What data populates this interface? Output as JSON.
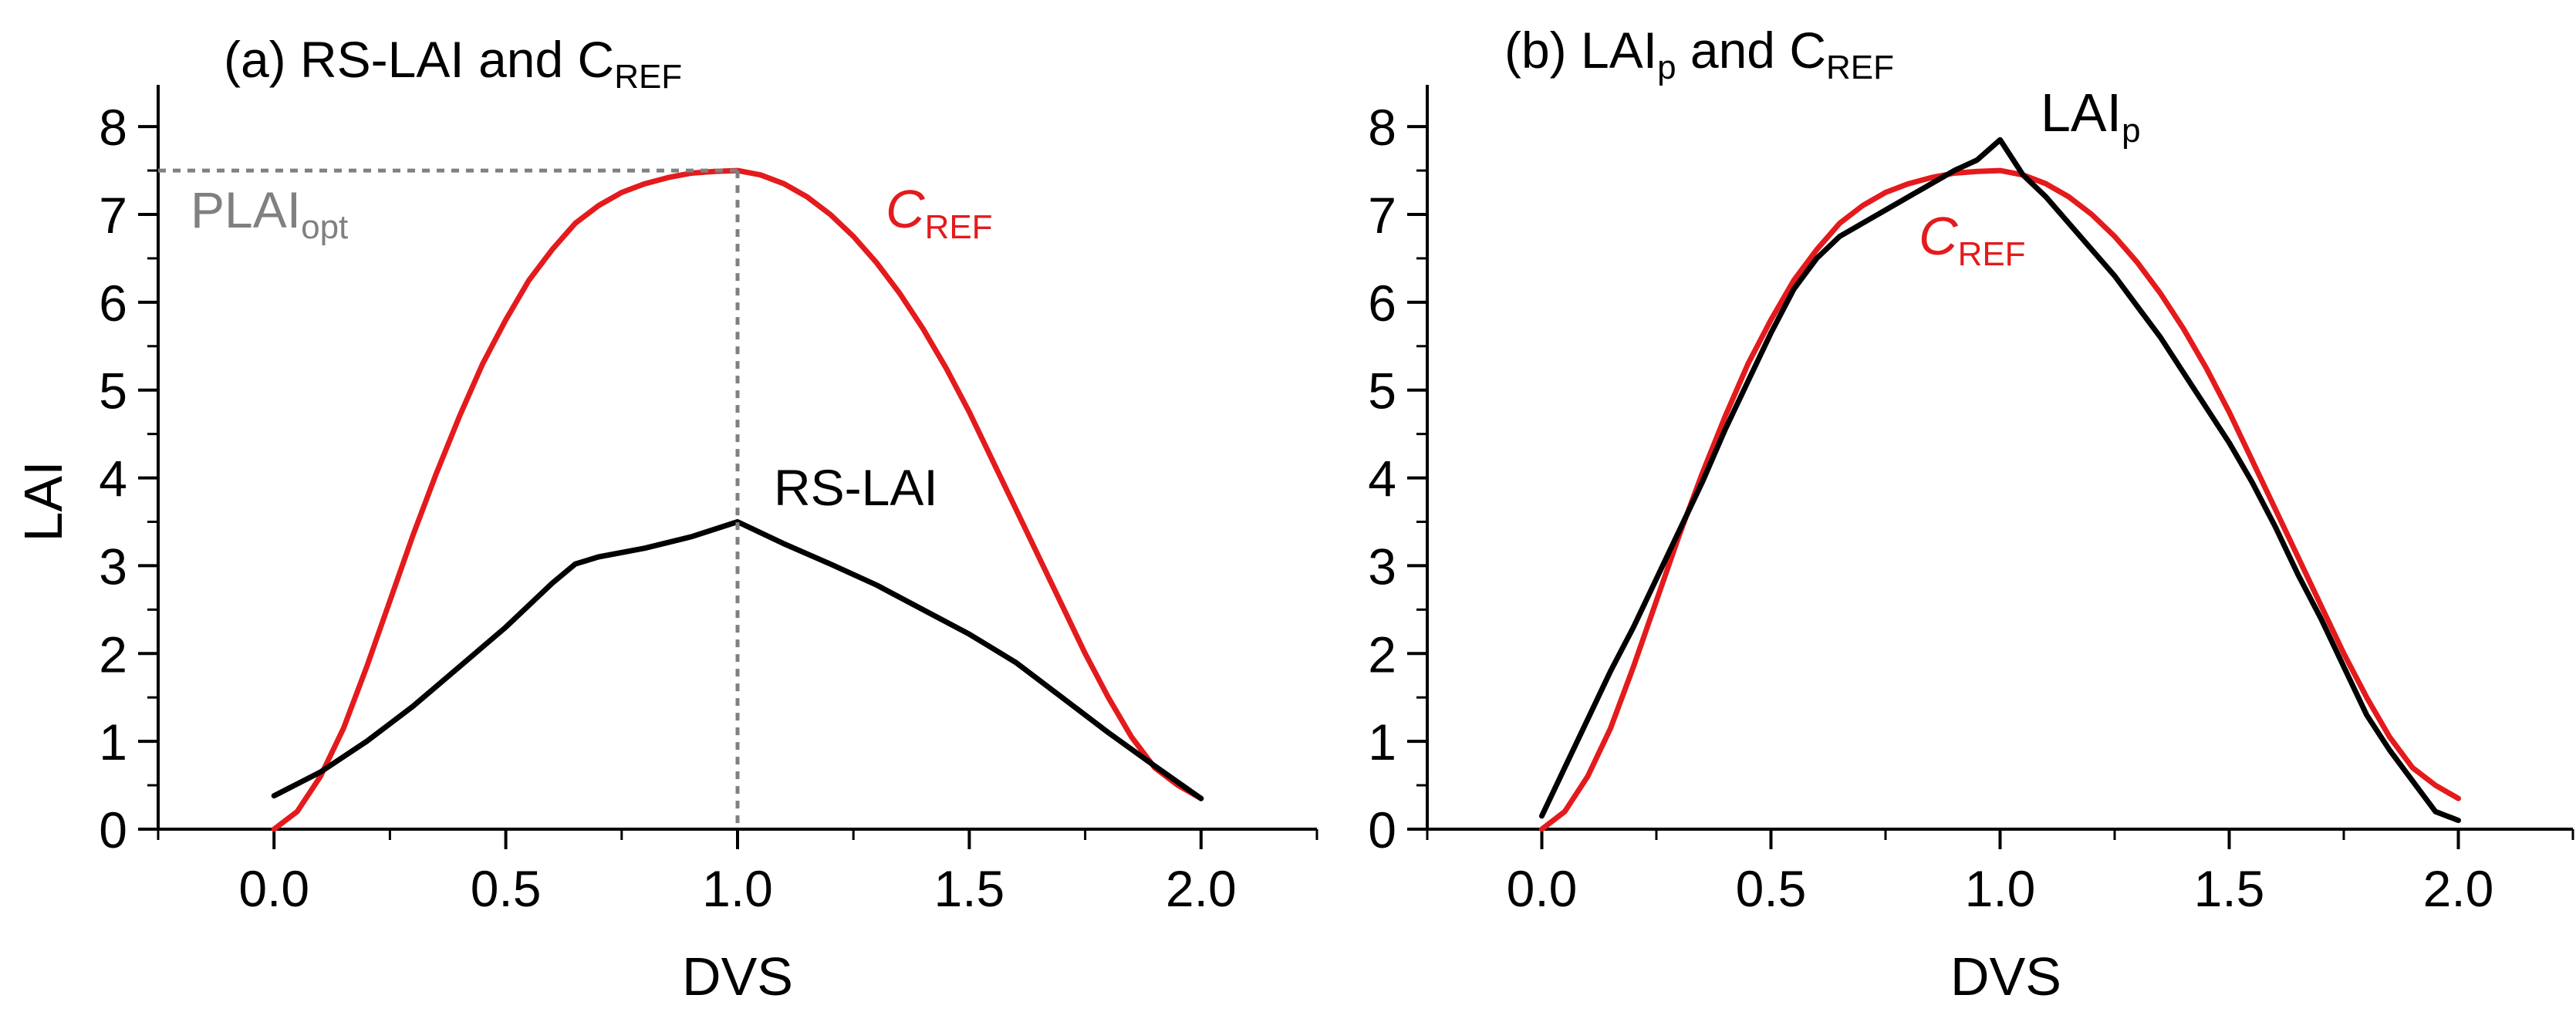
{
  "colors": {
    "red": "#e41a1c",
    "black": "#000000",
    "gray": "#808080"
  },
  "chart_data": [
    {
      "panel": "a",
      "type": "line",
      "title": {
        "main": "(a) RS-LAI and C",
        "sub": "REF"
      },
      "xlabel": "DVS",
      "ylabel": "LAI",
      "xlim": [
        -0.25,
        2.25
      ],
      "ylim": [
        0,
        8.3
      ],
      "xticks": [
        "0.0",
        "0.5",
        "1.0",
        "1.5",
        "2.0"
      ],
      "yticks": [
        "0",
        "1",
        "2",
        "3",
        "4",
        "5",
        "6",
        "7",
        "8"
      ],
      "series": [
        {
          "name": "C_REF",
          "color": "red",
          "x": [
            0.0,
            0.05,
            0.1,
            0.15,
            0.2,
            0.25,
            0.3,
            0.35,
            0.4,
            0.45,
            0.5,
            0.55,
            0.6,
            0.65,
            0.7,
            0.75,
            0.8,
            0.85,
            0.9,
            0.95,
            1.0,
            1.05,
            1.1,
            1.15,
            1.2,
            1.25,
            1.3,
            1.35,
            1.4,
            1.45,
            1.5,
            1.55,
            1.6,
            1.65,
            1.7,
            1.75,
            1.8,
            1.85,
            1.9,
            1.95,
            2.0
          ],
          "y": [
            0.0,
            0.2,
            0.6,
            1.15,
            1.85,
            2.6,
            3.35,
            4.05,
            4.7,
            5.3,
            5.8,
            6.25,
            6.6,
            6.9,
            7.1,
            7.25,
            7.35,
            7.42,
            7.47,
            7.49,
            7.5,
            7.45,
            7.35,
            7.2,
            7.0,
            6.75,
            6.45,
            6.1,
            5.7,
            5.25,
            4.75,
            4.2,
            3.65,
            3.1,
            2.55,
            2.0,
            1.5,
            1.05,
            0.7,
            0.5,
            0.35
          ]
        },
        {
          "name": "RS-LAI",
          "color": "black",
          "x": [
            0.0,
            0.1,
            0.2,
            0.3,
            0.4,
            0.5,
            0.6,
            0.65,
            0.7,
            0.8,
            0.9,
            1.0,
            1.1,
            1.2,
            1.3,
            1.4,
            1.5,
            1.6,
            1.7,
            1.8,
            1.9,
            2.0
          ],
          "y": [
            0.38,
            0.65,
            1.0,
            1.4,
            1.85,
            2.3,
            2.8,
            3.02,
            3.1,
            3.2,
            3.33,
            3.5,
            3.25,
            3.02,
            2.78,
            2.5,
            2.22,
            1.9,
            1.5,
            1.1,
            0.72,
            0.35
          ]
        }
      ],
      "annotations": {
        "rs_label": "RS-LAI",
        "cref_main": "C",
        "cref_sub": "REF",
        "plai_main": "PLAI",
        "plai_sub": "opt",
        "plai_value": 7.5,
        "plai_dvs": 1.0
      }
    },
    {
      "panel": "b",
      "type": "line",
      "title": {
        "p1": "(b) LAI",
        "p1sub": "p",
        "p2": " and C",
        "p2sub": "REF"
      },
      "xlabel": "DVS",
      "ylabel": "",
      "xlim": [
        -0.25,
        2.25
      ],
      "ylim": [
        0,
        8.3
      ],
      "xticks": [
        "0.0",
        "0.5",
        "1.0",
        "1.5",
        "2.0"
      ],
      "yticks": [
        "0",
        "1",
        "2",
        "3",
        "4",
        "5",
        "6",
        "7",
        "8"
      ],
      "series": [
        {
          "name": "C_REF",
          "color": "red",
          "x": [
            0.0,
            0.05,
            0.1,
            0.15,
            0.2,
            0.25,
            0.3,
            0.35,
            0.4,
            0.45,
            0.5,
            0.55,
            0.6,
            0.65,
            0.7,
            0.75,
            0.8,
            0.85,
            0.9,
            0.95,
            1.0,
            1.05,
            1.1,
            1.15,
            1.2,
            1.25,
            1.3,
            1.35,
            1.4,
            1.45,
            1.5,
            1.55,
            1.6,
            1.65,
            1.7,
            1.75,
            1.8,
            1.85,
            1.9,
            1.95,
            2.0
          ],
          "y": [
            0.0,
            0.2,
            0.6,
            1.15,
            1.85,
            2.6,
            3.35,
            4.05,
            4.7,
            5.3,
            5.8,
            6.25,
            6.6,
            6.9,
            7.1,
            7.25,
            7.35,
            7.42,
            7.47,
            7.49,
            7.5,
            7.45,
            7.35,
            7.2,
            7.0,
            6.75,
            6.45,
            6.1,
            5.7,
            5.25,
            4.75,
            4.2,
            3.65,
            3.1,
            2.55,
            2.0,
            1.5,
            1.05,
            0.7,
            0.5,
            0.35
          ]
        },
        {
          "name": "LAI_p",
          "color": "black",
          "x": [
            0.0,
            0.05,
            0.1,
            0.15,
            0.2,
            0.25,
            0.3,
            0.35,
            0.4,
            0.45,
            0.5,
            0.55,
            0.6,
            0.65,
            0.7,
            0.75,
            0.8,
            0.85,
            0.9,
            0.95,
            1.0,
            1.05,
            1.1,
            1.15,
            1.2,
            1.25,
            1.3,
            1.35,
            1.4,
            1.45,
            1.5,
            1.55,
            1.6,
            1.65,
            1.7,
            1.75,
            1.8,
            1.85,
            1.9,
            1.95,
            2.0
          ],
          "y": [
            0.15,
            0.7,
            1.25,
            1.8,
            2.3,
            2.85,
            3.4,
            3.95,
            4.55,
            5.1,
            5.65,
            6.15,
            6.5,
            6.75,
            6.9,
            7.05,
            7.2,
            7.35,
            7.5,
            7.62,
            7.85,
            7.45,
            7.2,
            6.9,
            6.6,
            6.3,
            5.95,
            5.6,
            5.2,
            4.8,
            4.4,
            3.95,
            3.45,
            2.9,
            2.4,
            1.85,
            1.3,
            0.9,
            0.55,
            0.2,
            0.1
          ]
        }
      ],
      "annotations": {
        "lai_main": "LAI",
        "lai_sub": "p",
        "cref_main": "C",
        "cref_sub": "REF"
      }
    }
  ]
}
